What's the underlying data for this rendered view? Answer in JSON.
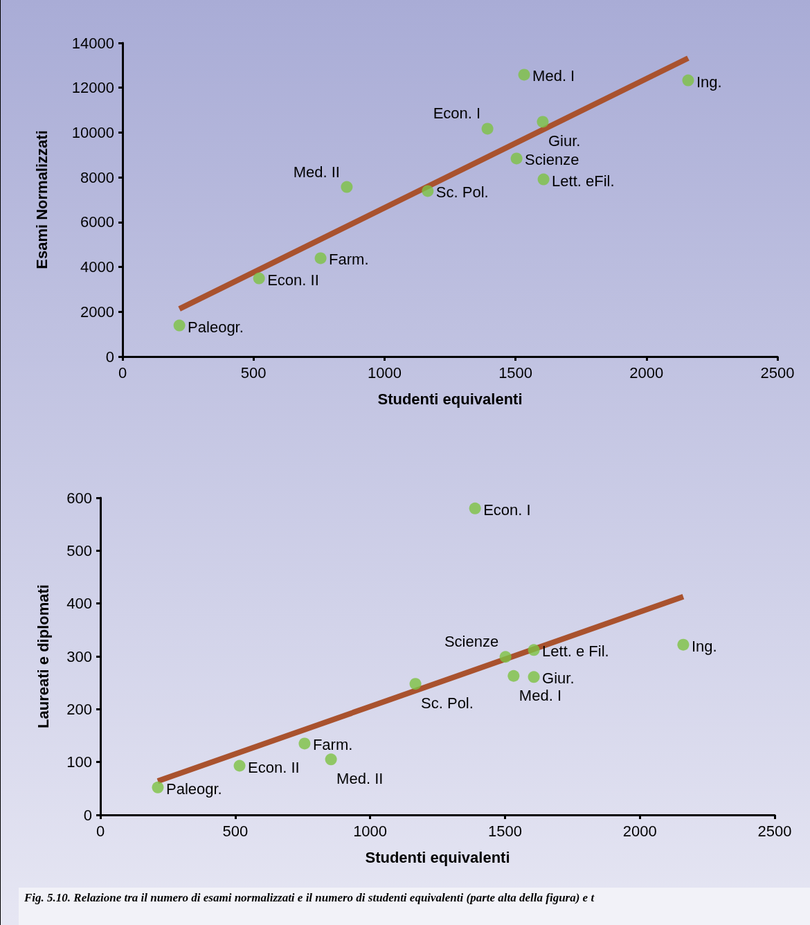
{
  "chart_data": [
    {
      "type": "scatter",
      "xlabel": "Studenti equivalenti",
      "ylabel": "Esami Normalizzati",
      "xlim": [
        0,
        2500
      ],
      "xticks": [
        0,
        500,
        1000,
        1500,
        2000,
        2500
      ],
      "ylim": [
        0,
        14000
      ],
      "yticks": [
        0,
        2000,
        4000,
        6000,
        8000,
        10000,
        12000,
        14000
      ],
      "grid": false,
      "marker": "circle",
      "series": [
        {
          "type": "scatter",
          "color": "#7dc242",
          "x": [
            217,
            521,
            756,
            856,
            1165,
            1393,
            1504,
            1533,
            1604,
            1607,
            2159
          ],
          "values": [
            1390,
            3490,
            4390,
            7570,
            7390,
            10170,
            8840,
            12580,
            10480,
            7910,
            12330
          ]
        },
        {
          "type": "line",
          "color": "#a9522e",
          "marker": "none",
          "x": [
            217,
            2159
          ],
          "values": [
            2130,
            13320
          ]
        }
      ],
      "annotations": [
        {
          "text": "Paleogr.",
          "x": 217,
          "y": 1390
        },
        {
          "text": "Econ. II",
          "x": 521,
          "y": 3490
        },
        {
          "text": "Farm.",
          "x": 756,
          "y": 4390
        },
        {
          "text": "Med. II",
          "x": 856,
          "y": 7570
        },
        {
          "text": "Sc. Pol.",
          "x": 1165,
          "y": 7390
        },
        {
          "text": "Econ. I",
          "x": 1393,
          "y": 10170
        },
        {
          "text": "Scienze",
          "x": 1504,
          "y": 8840
        },
        {
          "text": "Med. I",
          "x": 1533,
          "y": 12580
        },
        {
          "text": "Giur.",
          "x": 1604,
          "y": 10480
        },
        {
          "text": "Lett. eFil.",
          "x": 1607,
          "y": 7910
        },
        {
          "text": "Ing.",
          "x": 2159,
          "y": 12330
        }
      ]
    },
    {
      "type": "scatter",
      "xlabel": "Studenti equivalenti",
      "ylabel": "Laureati e diplomati",
      "xlim": [
        0,
        2500
      ],
      "xticks": [
        0,
        500,
        1000,
        1500,
        2000,
        2500
      ],
      "ylim": [
        0,
        600
      ],
      "yticks": [
        0,
        100,
        200,
        300,
        400,
        500,
        600
      ],
      "grid": false,
      "marker": "circle",
      "series": [
        {
          "type": "scatter",
          "color": "#7dc242",
          "x": [
            213,
            516,
            757,
            855,
            1168,
            1389,
            1502,
            1532,
            1607,
            1607,
            2161
          ],
          "values": [
            52,
            93,
            135,
            105,
            248,
            580,
            299,
            263,
            261,
            312,
            322
          ]
        },
        {
          "type": "line",
          "color": "#a9522e",
          "marker": "none",
          "x": [
            213,
            2161
          ],
          "values": [
            64,
            413
          ]
        }
      ],
      "annotations": [
        {
          "text": "Paleogr.",
          "x": 213,
          "y": 52
        },
        {
          "text": "Econ. II",
          "x": 516,
          "y": 93
        },
        {
          "text": "Farm.",
          "x": 757,
          "y": 135
        },
        {
          "text": "Med. II",
          "x": 855,
          "y": 105
        },
        {
          "text": "Sc. Pol.",
          "x": 1168,
          "y": 248
        },
        {
          "text": "Econ. I",
          "x": 1389,
          "y": 580
        },
        {
          "text": "Scienze",
          "x": 1502,
          "y": 299
        },
        {
          "text": "Med. I",
          "x": 1532,
          "y": 263
        },
        {
          "text": "Giur.",
          "x": 1607,
          "y": 261
        },
        {
          "text": "Lett. e Fil.",
          "x": 1607,
          "y": 312
        },
        {
          "text": "Ing.",
          "x": 2161,
          "y": 322
        },
        "Fig. 5.10. Relazione tra il numero di esami normalizzati e il numero di studenti equivalenti (parte alta della figura) e t"
      ]
    }
  ]
}
